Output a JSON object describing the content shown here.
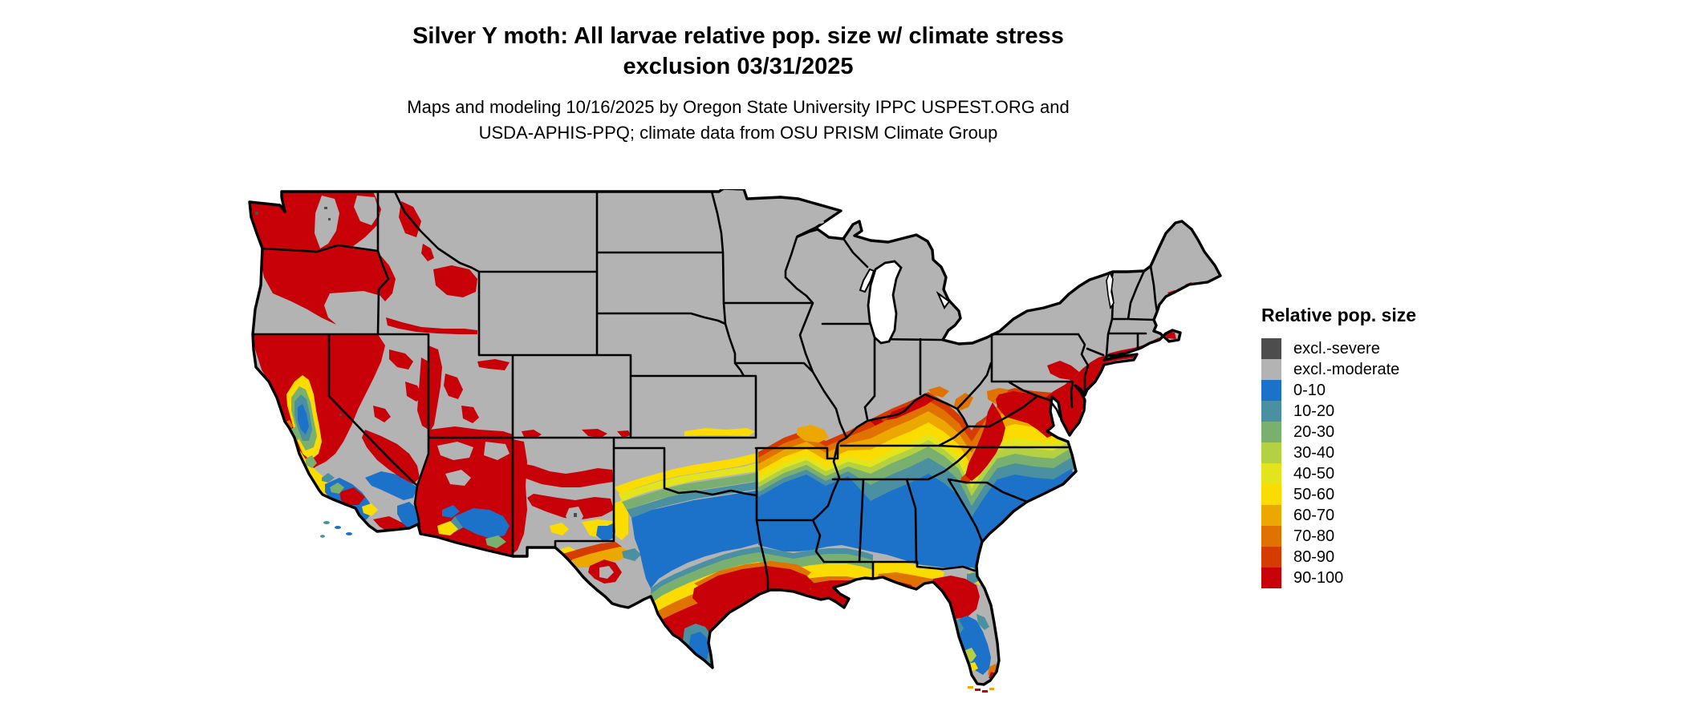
{
  "title": {
    "line1": "Silver Y moth: All larvae relative pop. size w/ climate stress",
    "line2": "exclusion 03/31/2025"
  },
  "subtitle": {
    "line1": "Maps and modeling 10/16/2025 by Oregon State University IPPC USPEST.ORG and",
    "line2": "USDA-APHIS-PPQ; climate data from OSU PRISM Climate Group"
  },
  "legend": {
    "title": "Relative pop. size",
    "items": [
      {
        "label": "excl.-severe",
        "color": "#4d4d4d"
      },
      {
        "label": "excl.-moderate",
        "color": "#b3b3b3"
      },
      {
        "label": "0-10",
        "color": "#1b72c8"
      },
      {
        "label": "10-20",
        "color": "#4a90a0"
      },
      {
        "label": "20-30",
        "color": "#7ab06f"
      },
      {
        "label": "30-40",
        "color": "#b4d043"
      },
      {
        "label": "40-50",
        "color": "#e2e51c"
      },
      {
        "label": "50-60",
        "color": "#fadc00"
      },
      {
        "label": "60-70",
        "color": "#eca800"
      },
      {
        "label": "70-80",
        "color": "#e07200"
      },
      {
        "label": "80-90",
        "color": "#d63c00"
      },
      {
        "label": "90-100",
        "color": "#c80008"
      }
    ]
  },
  "map": {
    "region": "Contiguous United States",
    "land_default_class": "excl.-moderate",
    "water_color": "#ffffff",
    "boundary_color": "#000000"
  }
}
